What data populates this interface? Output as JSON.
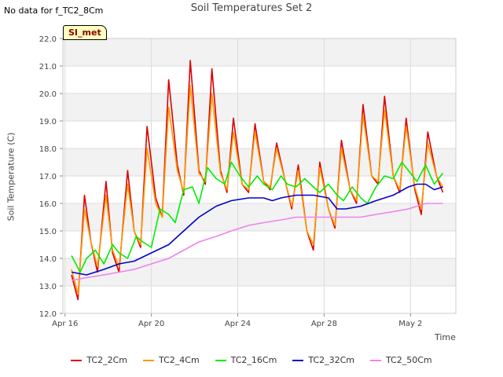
{
  "header": {
    "nodata_text": "No data for f_TC2_8Cm",
    "title": "Soil Temperatures Set 2",
    "badge": "SI_met"
  },
  "chart_data": {
    "type": "line",
    "title": "Soil Temperatures Set 2",
    "xlabel": "Time",
    "ylabel": "Soil Temperature (C)",
    "ylim": [
      12.0,
      22.0
    ],
    "yticks": [
      "12.0",
      "13.0",
      "14.0",
      "15.0",
      "16.0",
      "17.0",
      "18.0",
      "19.0",
      "20.0",
      "21.0",
      "22.0"
    ],
    "xlim_days_labels": [
      "Apr 16",
      "Apr 20",
      "Apr 24",
      "Apr 28",
      "May 2"
    ],
    "x_tick_days": [
      0,
      4,
      8,
      12,
      16
    ],
    "x_range_days": [
      -0.1,
      18.1
    ],
    "grid": true,
    "legend_placement": "bottom",
    "series": [
      {
        "name": "TC2_2Cm",
        "color": "#dd0000",
        "x": [
          0.3,
          0.6,
          0.9,
          1.2,
          1.5,
          1.9,
          2.2,
          2.5,
          2.9,
          3.2,
          3.5,
          3.8,
          4.2,
          4.5,
          4.8,
          5.2,
          5.5,
          5.8,
          6.2,
          6.5,
          6.8,
          7.2,
          7.5,
          7.8,
          8.2,
          8.5,
          8.8,
          9.2,
          9.5,
          9.8,
          10.2,
          10.5,
          10.8,
          11.2,
          11.5,
          11.8,
          12.2,
          12.5,
          12.8,
          13.2,
          13.5,
          13.8,
          14.2,
          14.5,
          14.8,
          15.2,
          15.5,
          15.8,
          16.2,
          16.5,
          16.8,
          17.2,
          17.5
        ],
        "y": [
          13.4,
          12.5,
          16.3,
          14.6,
          13.5,
          16.8,
          14.2,
          13.5,
          17.2,
          15.0,
          14.4,
          18.8,
          16.2,
          15.5,
          20.5,
          17.4,
          16.3,
          21.2,
          17.2,
          16.7,
          20.9,
          17.2,
          16.4,
          19.1,
          16.7,
          16.4,
          18.9,
          16.8,
          16.5,
          18.2,
          16.8,
          15.8,
          17.4,
          15.0,
          14.3,
          17.5,
          15.8,
          15.1,
          18.3,
          16.5,
          16.0,
          19.6,
          17.0,
          16.7,
          19.9,
          17.0,
          16.4,
          19.1,
          16.5,
          15.6,
          18.6,
          17.0,
          16.4
        ]
      },
      {
        "name": "TC2_4Cm",
        "color": "#ff9900",
        "x": [
          0.3,
          0.6,
          0.9,
          1.2,
          1.5,
          1.9,
          2.2,
          2.5,
          2.9,
          3.2,
          3.5,
          3.8,
          4.2,
          4.5,
          4.8,
          5.2,
          5.5,
          5.8,
          6.2,
          6.5,
          6.8,
          7.2,
          7.5,
          7.8,
          8.2,
          8.5,
          8.8,
          9.2,
          9.5,
          9.8,
          10.2,
          10.5,
          10.8,
          11.2,
          11.5,
          11.8,
          12.2,
          12.5,
          12.8,
          13.2,
          13.5,
          13.8,
          14.2,
          14.5,
          14.8,
          15.2,
          15.5,
          15.8,
          16.2,
          16.5,
          16.8,
          17.2,
          17.5
        ],
        "y": [
          13.6,
          12.7,
          15.8,
          14.6,
          13.7,
          16.3,
          14.3,
          13.7,
          16.7,
          15.0,
          14.5,
          18.0,
          16.0,
          15.5,
          19.5,
          17.2,
          16.4,
          20.3,
          17.1,
          16.8,
          20.0,
          17.1,
          16.5,
          18.6,
          16.7,
          16.5,
          18.6,
          16.8,
          16.6,
          18.0,
          16.8,
          15.9,
          17.2,
          15.0,
          14.5,
          17.3,
          15.8,
          15.2,
          18.0,
          16.5,
          16.1,
          19.2,
          17.0,
          16.8,
          19.4,
          17.0,
          16.5,
          18.8,
          16.6,
          15.8,
          18.2,
          17.0,
          16.6
        ]
      },
      {
        "name": "TC2_16Cm",
        "color": "#00ee00",
        "x": [
          0.3,
          0.7,
          1.0,
          1.4,
          1.8,
          2.2,
          2.5,
          2.9,
          3.3,
          3.6,
          4.0,
          4.4,
          4.8,
          5.1,
          5.5,
          5.9,
          6.2,
          6.6,
          7.0,
          7.4,
          7.7,
          8.1,
          8.5,
          8.9,
          9.2,
          9.6,
          10.0,
          10.3,
          10.7,
          11.1,
          11.5,
          11.8,
          12.2,
          12.6,
          12.9,
          13.3,
          13.7,
          14.0,
          14.4,
          14.8,
          15.2,
          15.6,
          15.9,
          16.3,
          16.7,
          17.1,
          17.5
        ],
        "y": [
          14.1,
          13.5,
          14.0,
          14.3,
          13.8,
          14.5,
          14.2,
          14.0,
          14.8,
          14.6,
          14.4,
          15.8,
          15.6,
          15.3,
          16.5,
          16.6,
          16.0,
          17.3,
          16.9,
          16.7,
          17.5,
          17.0,
          16.6,
          17.0,
          16.7,
          16.5,
          17.0,
          16.7,
          16.6,
          16.9,
          16.6,
          16.4,
          16.7,
          16.3,
          16.1,
          16.6,
          16.2,
          16.0,
          16.6,
          17.0,
          16.9,
          17.5,
          17.2,
          16.8,
          17.4,
          16.7,
          17.1
        ]
      },
      {
        "name": "TC2_32Cm",
        "color": "#0000cc",
        "x": [
          0.3,
          1.0,
          1.8,
          2.5,
          3.2,
          4.0,
          4.8,
          5.5,
          6.2,
          7.0,
          7.7,
          8.5,
          9.2,
          9.6,
          10.0,
          10.7,
          11.5,
          12.2,
          12.6,
          13.0,
          13.7,
          14.4,
          15.2,
          15.9,
          16.3,
          16.7,
          17.1,
          17.5
        ],
        "y": [
          13.5,
          13.4,
          13.6,
          13.8,
          13.9,
          14.2,
          14.5,
          15.0,
          15.5,
          15.9,
          16.1,
          16.2,
          16.2,
          16.1,
          16.2,
          16.3,
          16.3,
          16.2,
          15.8,
          15.8,
          15.9,
          16.1,
          16.3,
          16.6,
          16.7,
          16.7,
          16.5,
          16.6
        ]
      },
      {
        "name": "TC2_50Cm",
        "color": "#ee82ee",
        "x": [
          0.3,
          1.0,
          1.8,
          2.5,
          3.2,
          4.0,
          4.8,
          5.5,
          6.2,
          7.0,
          7.7,
          8.5,
          9.2,
          10.0,
          10.7,
          11.5,
          12.2,
          13.0,
          13.7,
          14.4,
          15.2,
          15.9,
          16.7,
          17.1,
          17.5
        ],
        "y": [
          13.2,
          13.3,
          13.4,
          13.5,
          13.6,
          13.8,
          14.0,
          14.3,
          14.6,
          14.8,
          15.0,
          15.2,
          15.3,
          15.4,
          15.5,
          15.5,
          15.5,
          15.5,
          15.5,
          15.6,
          15.7,
          15.8,
          16.0,
          16.0,
          16.0
        ]
      }
    ]
  }
}
